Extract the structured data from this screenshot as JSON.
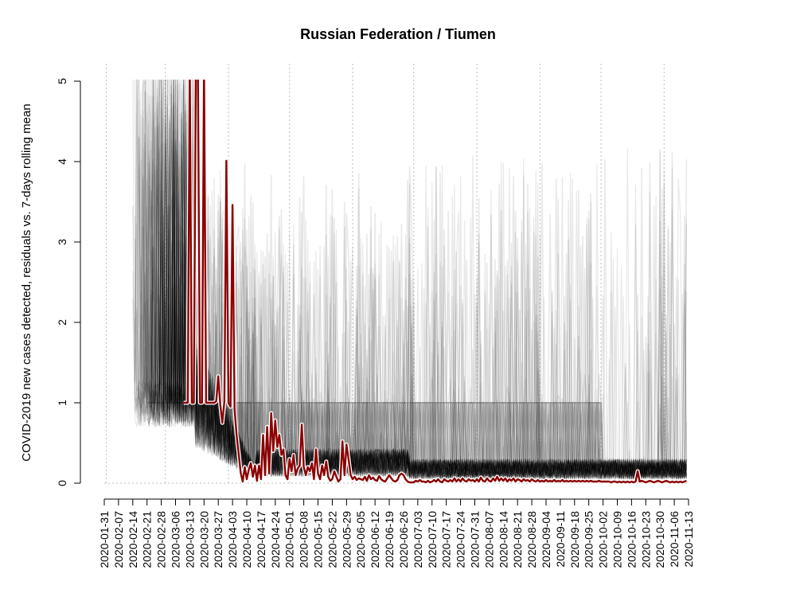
{
  "chart_data": {
    "type": "line",
    "title": "Russian Federation / Tiumen",
    "xlabel": "",
    "ylabel": "COVID-2019 new cases detected, residuals vs. 7-days rolling mean",
    "ylim": [
      0,
      5
    ],
    "xlim": [
      "2020-01-31",
      "2020-11-13"
    ],
    "y_ticks": [
      "0",
      "1",
      "2",
      "3",
      "4",
      "5"
    ],
    "x_ticks": [
      "2020-01-31",
      "2020-02-07",
      "2020-02-14",
      "2020-02-21",
      "2020-02-28",
      "2020-03-06",
      "2020-03-13",
      "2020-03-20",
      "2020-03-27",
      "2020-04-03",
      "2020-04-10",
      "2020-04-17",
      "2020-04-24",
      "2020-05-01",
      "2020-05-08",
      "2020-05-15",
      "2020-05-22",
      "2020-05-29",
      "2020-06-05",
      "2020-06-12",
      "2020-06-19",
      "2020-06-26",
      "2020-07-03",
      "2020-07-10",
      "2020-07-17",
      "2020-07-24",
      "2020-07-31",
      "2020-08-07",
      "2020-08-14",
      "2020-08-21",
      "2020-08-28",
      "2020-09-04",
      "2020-09-11",
      "2020-09-18",
      "2020-09-25",
      "2020-10-02",
      "2020-10-09",
      "2020-10-16",
      "2020-10-23",
      "2020-10-30",
      "2020-11-06",
      "2020-11-13"
    ],
    "grid": "vertical dotted lines at month starts",
    "legend": "none",
    "colors": {
      "highlight": "#8b0000",
      "highlight_outline": "#ffffff",
      "background_series": "#000000"
    },
    "series": [
      {
        "values": [
          [
            "2020-03-10",
            1.0
          ],
          [
            "2020-03-11",
            1.0
          ],
          [
            "2020-03-12",
            1.0
          ],
          [
            "2020-03-13",
            5.2
          ],
          [
            "2020-03-14",
            1.0
          ],
          [
            "2020-03-15",
            1.0
          ],
          [
            "2020-03-16",
            5.2
          ],
          [
            "2020-03-17",
            5.2
          ],
          [
            "2020-03-18",
            1.0
          ],
          [
            "2020-03-19",
            1.0
          ],
          [
            "2020-03-20",
            5.2
          ],
          [
            "2020-03-21",
            1.0
          ],
          [
            "2020-03-22",
            1.0
          ],
          [
            "2020-03-23",
            1.0
          ],
          [
            "2020-03-24",
            1.0
          ],
          [
            "2020-03-25",
            1.0
          ],
          [
            "2020-03-26",
            1.02
          ],
          [
            "2020-03-27",
            1.33
          ],
          [
            "2020-03-28",
            0.97
          ],
          [
            "2020-03-29",
            0.75
          ],
          [
            "2020-03-30",
            1.02
          ],
          [
            "2020-03-31",
            4.01
          ],
          [
            "2020-04-01",
            1.0
          ],
          [
            "2020-04-02",
            0.95
          ],
          [
            "2020-04-03",
            3.46
          ],
          [
            "2020-04-04",
            0.92
          ],
          [
            "2020-04-05",
            0.6
          ],
          [
            "2020-04-06",
            0.37
          ],
          [
            "2020-04-07",
            0.13
          ],
          [
            "2020-04-08",
            0.02
          ],
          [
            "2020-04-09",
            0.2
          ],
          [
            "2020-04-10",
            0.05
          ],
          [
            "2020-04-11",
            0.17
          ],
          [
            "2020-04-12",
            0.25
          ],
          [
            "2020-04-13",
            0.08
          ],
          [
            "2020-04-14",
            0.22
          ],
          [
            "2020-04-15",
            0.03
          ],
          [
            "2020-04-16",
            0.22
          ],
          [
            "2020-04-17",
            0.05
          ],
          [
            "2020-04-18",
            0.6
          ],
          [
            "2020-04-19",
            0.1
          ],
          [
            "2020-04-20",
            0.7
          ],
          [
            "2020-04-21",
            0.12
          ],
          [
            "2020-04-22",
            0.87
          ],
          [
            "2020-04-23",
            0.4
          ],
          [
            "2020-04-24",
            0.78
          ],
          [
            "2020-04-25",
            0.45
          ],
          [
            "2020-04-26",
            0.6
          ],
          [
            "2020-04-27",
            0.35
          ],
          [
            "2020-04-28",
            0.42
          ],
          [
            "2020-04-29",
            0.1
          ],
          [
            "2020-04-30",
            0.05
          ],
          [
            "2020-05-01",
            0.3
          ],
          [
            "2020-05-02",
            0.15
          ],
          [
            "2020-05-03",
            0.35
          ],
          [
            "2020-05-04",
            0.1
          ],
          [
            "2020-05-05",
            0.18
          ],
          [
            "2020-05-06",
            0.22
          ],
          [
            "2020-05-07",
            0.73
          ],
          [
            "2020-05-08",
            0.2
          ],
          [
            "2020-05-09",
            0.1
          ],
          [
            "2020-05-10",
            0.2
          ],
          [
            "2020-05-11",
            0.15
          ],
          [
            "2020-05-12",
            0.25
          ],
          [
            "2020-05-13",
            0.05
          ],
          [
            "2020-05-14",
            0.42
          ],
          [
            "2020-05-15",
            0.12
          ],
          [
            "2020-05-16",
            0.05
          ],
          [
            "2020-05-17",
            0.22
          ],
          [
            "2020-05-18",
            0.1
          ],
          [
            "2020-05-19",
            0.27
          ],
          [
            "2020-05-20",
            0.08
          ],
          [
            "2020-05-21",
            0.03
          ],
          [
            "2020-05-22",
            0.05
          ],
          [
            "2020-05-23",
            0.15
          ],
          [
            "2020-05-24",
            0.08
          ],
          [
            "2020-05-25",
            0.02
          ],
          [
            "2020-05-26",
            0.05
          ],
          [
            "2020-05-27",
            0.52
          ],
          [
            "2020-05-28",
            0.1
          ],
          [
            "2020-05-29",
            0.48
          ],
          [
            "2020-05-30",
            0.3
          ],
          [
            "2020-05-31",
            0.1
          ],
          [
            "2020-06-01",
            0.05
          ],
          [
            "2020-06-02",
            0.08
          ],
          [
            "2020-06-03",
            0.04
          ],
          [
            "2020-06-04",
            0.06
          ],
          [
            "2020-06-05",
            0.05
          ],
          [
            "2020-06-06",
            0.04
          ],
          [
            "2020-06-07",
            0.08
          ],
          [
            "2020-06-08",
            0.03
          ],
          [
            "2020-06-09",
            0.1
          ],
          [
            "2020-06-10",
            0.05
          ],
          [
            "2020-06-11",
            0.07
          ],
          [
            "2020-06-12",
            0.04
          ],
          [
            "2020-06-13",
            0.03
          ],
          [
            "2020-06-14",
            0.09
          ],
          [
            "2020-06-15",
            0.05
          ],
          [
            "2020-06-16",
            0.03
          ],
          [
            "2020-06-17",
            0.02
          ],
          [
            "2020-06-18",
            0.06
          ],
          [
            "2020-06-19",
            0.1
          ],
          [
            "2020-06-20",
            0.06
          ],
          [
            "2020-06-21",
            0.03
          ],
          [
            "2020-06-22",
            0.02
          ],
          [
            "2020-06-23",
            0.04
          ],
          [
            "2020-06-24",
            0.1
          ],
          [
            "2020-06-25",
            0.12
          ],
          [
            "2020-06-26",
            0.1
          ],
          [
            "2020-06-27",
            0.05
          ],
          [
            "2020-06-28",
            0.02
          ],
          [
            "2020-06-29",
            0.01
          ],
          [
            "2020-06-30",
            0.01
          ],
          [
            "2020-07-01",
            0.01
          ],
          [
            "2020-07-02",
            0.03
          ],
          [
            "2020-07-03",
            0.02
          ],
          [
            "2020-07-04",
            0.04
          ],
          [
            "2020-07-05",
            0.02
          ],
          [
            "2020-07-06",
            0.02
          ],
          [
            "2020-07-07",
            0.01
          ],
          [
            "2020-07-08",
            0.03
          ],
          [
            "2020-07-09",
            0.01
          ],
          [
            "2020-07-10",
            0.02
          ],
          [
            "2020-07-11",
            0.04
          ],
          [
            "2020-07-12",
            0.02
          ],
          [
            "2020-07-13",
            0.05
          ],
          [
            "2020-07-14",
            0.02
          ],
          [
            "2020-07-15",
            0.01
          ],
          [
            "2020-07-16",
            0.05
          ],
          [
            "2020-07-17",
            0.03
          ],
          [
            "2020-07-18",
            0.02
          ],
          [
            "2020-07-19",
            0.04
          ],
          [
            "2020-07-20",
            0.02
          ],
          [
            "2020-07-21",
            0.06
          ],
          [
            "2020-07-22",
            0.02
          ],
          [
            "2020-07-23",
            0.05
          ],
          [
            "2020-07-24",
            0.02
          ],
          [
            "2020-07-25",
            0.06
          ],
          [
            "2020-07-26",
            0.03
          ],
          [
            "2020-07-27",
            0.02
          ],
          [
            "2020-07-28",
            0.05
          ],
          [
            "2020-07-29",
            0.03
          ],
          [
            "2020-07-30",
            0.04
          ],
          [
            "2020-07-31",
            0.02
          ],
          [
            "2020-08-01",
            0.05
          ],
          [
            "2020-08-02",
            0.02
          ],
          [
            "2020-08-03",
            0.07
          ],
          [
            "2020-08-04",
            0.03
          ],
          [
            "2020-08-05",
            0.02
          ],
          [
            "2020-08-06",
            0.06
          ],
          [
            "2020-08-07",
            0.03
          ],
          [
            "2020-08-08",
            0.02
          ],
          [
            "2020-08-09",
            0.06
          ],
          [
            "2020-08-10",
            0.03
          ],
          [
            "2020-08-11",
            0.08
          ],
          [
            "2020-08-12",
            0.03
          ],
          [
            "2020-08-13",
            0.06
          ],
          [
            "2020-08-14",
            0.03
          ],
          [
            "2020-08-15",
            0.06
          ],
          [
            "2020-08-16",
            0.02
          ],
          [
            "2020-08-17",
            0.05
          ],
          [
            "2020-08-18",
            0.03
          ],
          [
            "2020-08-19",
            0.06
          ],
          [
            "2020-08-20",
            0.02
          ],
          [
            "2020-08-21",
            0.05
          ],
          [
            "2020-08-22",
            0.04
          ],
          [
            "2020-08-23",
            0.02
          ],
          [
            "2020-08-24",
            0.05
          ],
          [
            "2020-08-25",
            0.03
          ],
          [
            "2020-08-26",
            0.04
          ],
          [
            "2020-08-27",
            0.02
          ],
          [
            "2020-08-28",
            0.05
          ],
          [
            "2020-08-29",
            0.03
          ],
          [
            "2020-08-30",
            0.02
          ],
          [
            "2020-08-31",
            0.04
          ],
          [
            "2020-09-01",
            0.02
          ],
          [
            "2020-09-02",
            0.03
          ],
          [
            "2020-09-03",
            0.02
          ],
          [
            "2020-09-04",
            0.04
          ],
          [
            "2020-09-05",
            0.02
          ],
          [
            "2020-09-06",
            0.03
          ],
          [
            "2020-09-07",
            0.02
          ],
          [
            "2020-09-08",
            0.04
          ],
          [
            "2020-09-09",
            0.02
          ],
          [
            "2020-09-10",
            0.03
          ],
          [
            "2020-09-11",
            0.02
          ],
          [
            "2020-09-12",
            0.04
          ],
          [
            "2020-09-13",
            0.02
          ],
          [
            "2020-09-14",
            0.03
          ],
          [
            "2020-09-15",
            0.02
          ],
          [
            "2020-09-16",
            0.03
          ],
          [
            "2020-09-17",
            0.02
          ],
          [
            "2020-09-18",
            0.03
          ],
          [
            "2020-09-19",
            0.02
          ],
          [
            "2020-09-20",
            0.03
          ],
          [
            "2020-09-21",
            0.02
          ],
          [
            "2020-09-22",
            0.03
          ],
          [
            "2020-09-23",
            0.02
          ],
          [
            "2020-09-24",
            0.03
          ],
          [
            "2020-09-25",
            0.02
          ],
          [
            "2020-09-26",
            0.03
          ],
          [
            "2020-09-27",
            0.02
          ],
          [
            "2020-09-28",
            0.02
          ],
          [
            "2020-09-29",
            0.02
          ],
          [
            "2020-09-30",
            0.03
          ],
          [
            "2020-10-01",
            0.02
          ],
          [
            "2020-10-02",
            0.02
          ],
          [
            "2020-10-03",
            0.02
          ],
          [
            "2020-10-04",
            0.02
          ],
          [
            "2020-10-05",
            0.02
          ],
          [
            "2020-10-06",
            0.01
          ],
          [
            "2020-10-07",
            0.02
          ],
          [
            "2020-10-08",
            0.02
          ],
          [
            "2020-10-09",
            0.01
          ],
          [
            "2020-10-10",
            0.02
          ],
          [
            "2020-10-11",
            0.01
          ],
          [
            "2020-10-12",
            0.02
          ],
          [
            "2020-10-13",
            0.01
          ],
          [
            "2020-10-14",
            0.02
          ],
          [
            "2020-10-15",
            0.01
          ],
          [
            "2020-10-16",
            0.02
          ],
          [
            "2020-10-17",
            0.01
          ],
          [
            "2020-10-18",
            0.02
          ],
          [
            "2020-10-19",
            0.15
          ],
          [
            "2020-10-20",
            0.02
          ],
          [
            "2020-10-21",
            0.03
          ],
          [
            "2020-10-22",
            0.02
          ],
          [
            "2020-10-23",
            0.01
          ],
          [
            "2020-10-24",
            0.02
          ],
          [
            "2020-10-25",
            0.03
          ],
          [
            "2020-10-26",
            0.02
          ],
          [
            "2020-10-27",
            0.01
          ],
          [
            "2020-10-28",
            0.02
          ],
          [
            "2020-10-29",
            0.03
          ],
          [
            "2020-10-30",
            0.02
          ],
          [
            "2020-10-31",
            0.01
          ],
          [
            "2020-11-01",
            0.02
          ],
          [
            "2020-11-02",
            0.03
          ],
          [
            "2020-11-03",
            0.02
          ],
          [
            "2020-11-04",
            0.01
          ],
          [
            "2020-11-05",
            0.02
          ],
          [
            "2020-11-06",
            0.01
          ],
          [
            "2020-11-07",
            0.02
          ],
          [
            "2020-11-08",
            0.01
          ],
          [
            "2020-11-09",
            0.02
          ],
          [
            "2020-11-10",
            0.01
          ],
          [
            "2020-11-11",
            0.02
          ],
          [
            "2020-11-12",
            0.03
          ]
        ]
      }
    ]
  }
}
